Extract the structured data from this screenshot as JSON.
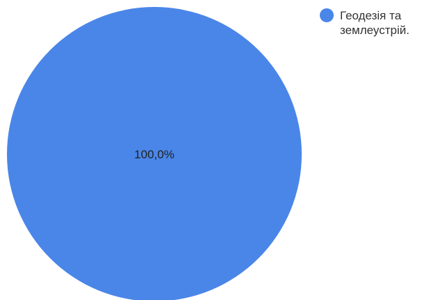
{
  "chart_data": {
    "type": "pie",
    "categories": [
      "Геодезія та землеустрій."
    ],
    "values": [
      100
    ],
    "data_labels": [
      "100,0%"
    ],
    "colors": [
      "#4a86e8"
    ],
    "legend_position": "top-right",
    "title": ""
  }
}
